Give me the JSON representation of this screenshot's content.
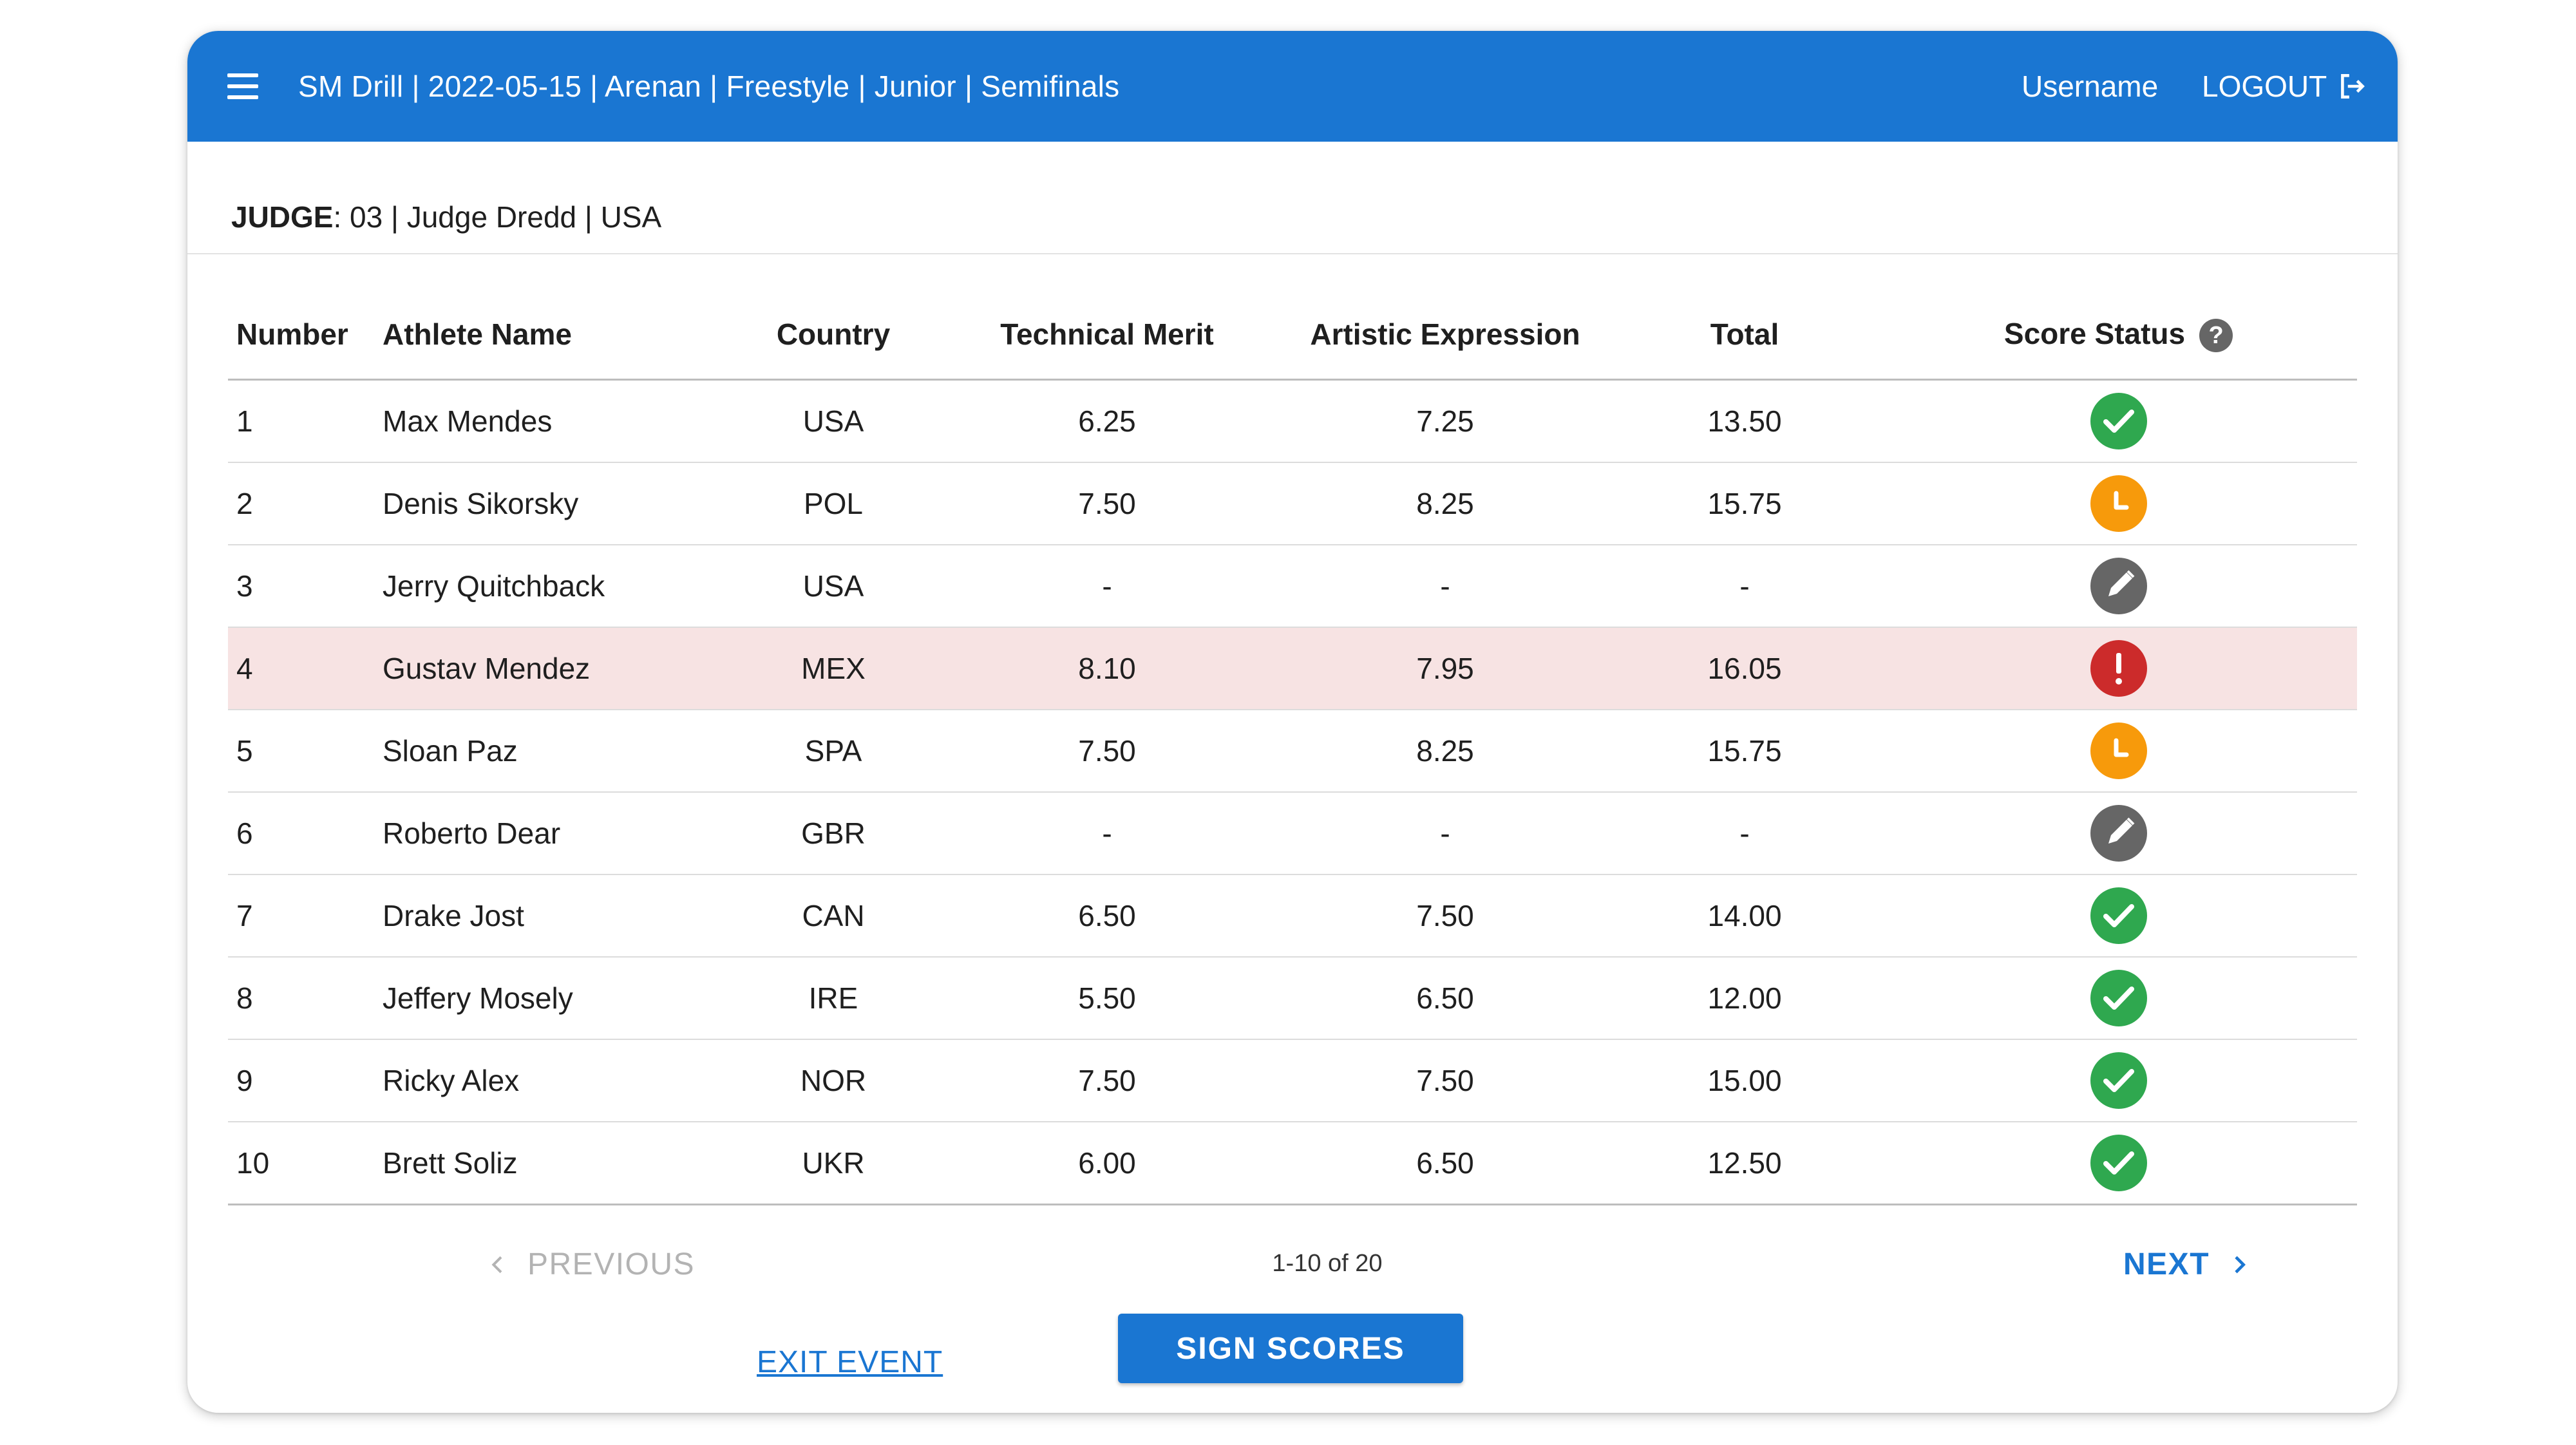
{
  "header": {
    "title": "SM Drill | 2022-05-15 | Arenan | Freestyle | Junior | Semifinals",
    "username": "Username",
    "logout_label": "LOGOUT"
  },
  "judge": {
    "label": "JUDGE",
    "value": ": 03 | Judge Dredd | USA"
  },
  "table": {
    "columns": [
      "Number",
      "Athlete Name",
      "Country",
      "Technical Merit",
      "Artistic Expression",
      "Total",
      "Score Status"
    ],
    "rows": [
      {
        "number": "1",
        "name": "Max Mendes",
        "country": "USA",
        "technical": "6.25",
        "artistic": "7.25",
        "total": "13.50",
        "status": "approved"
      },
      {
        "number": "2",
        "name": "Denis Sikorsky",
        "country": "POL",
        "technical": "7.50",
        "artistic": "8.25",
        "total": "15.75",
        "status": "pending"
      },
      {
        "number": "3",
        "name": "Jerry Quitchback",
        "country": "USA",
        "technical": "-",
        "artistic": "-",
        "total": "-",
        "status": "editing"
      },
      {
        "number": "4",
        "name": "Gustav Mendez",
        "country": "MEX",
        "technical": "8.10",
        "artistic": "7.95",
        "total": "16.05",
        "status": "error"
      },
      {
        "number": "5",
        "name": "Sloan Paz",
        "country": "SPA",
        "technical": "7.50",
        "artistic": "8.25",
        "total": "15.75",
        "status": "pending"
      },
      {
        "number": "6",
        "name": "Roberto Dear",
        "country": "GBR",
        "technical": "-",
        "artistic": "-",
        "total": "-",
        "status": "editing"
      },
      {
        "number": "7",
        "name": "Drake Jost",
        "country": "CAN",
        "technical": "6.50",
        "artistic": "7.50",
        "total": "14.00",
        "status": "approved"
      },
      {
        "number": "8",
        "name": "Jeffery Mosely",
        "country": "IRE",
        "technical": "5.50",
        "artistic": "6.50",
        "total": "12.00",
        "status": "approved"
      },
      {
        "number": "9",
        "name": "Ricky Alex",
        "country": "NOR",
        "technical": "7.50",
        "artistic": "7.50",
        "total": "15.00",
        "status": "approved"
      },
      {
        "number": "10",
        "name": "Brett Soliz",
        "country": "UKR",
        "technical": "6.00",
        "artistic": "6.50",
        "total": "12.50",
        "status": "approved"
      }
    ]
  },
  "pagination": {
    "previous_label": "PREVIOUS",
    "info": "1-10 of 20",
    "next_label": "NEXT"
  },
  "actions": {
    "exit_label": "EXIT EVENT",
    "sign_label": "SIGN SCORES"
  },
  "colors": {
    "primary": "#1a76d2",
    "approved": "#2fa84f",
    "pending": "#f79a0b",
    "editing": "#666666",
    "error": "#cc2b2b",
    "flagged_row": "#f7e3e3"
  }
}
